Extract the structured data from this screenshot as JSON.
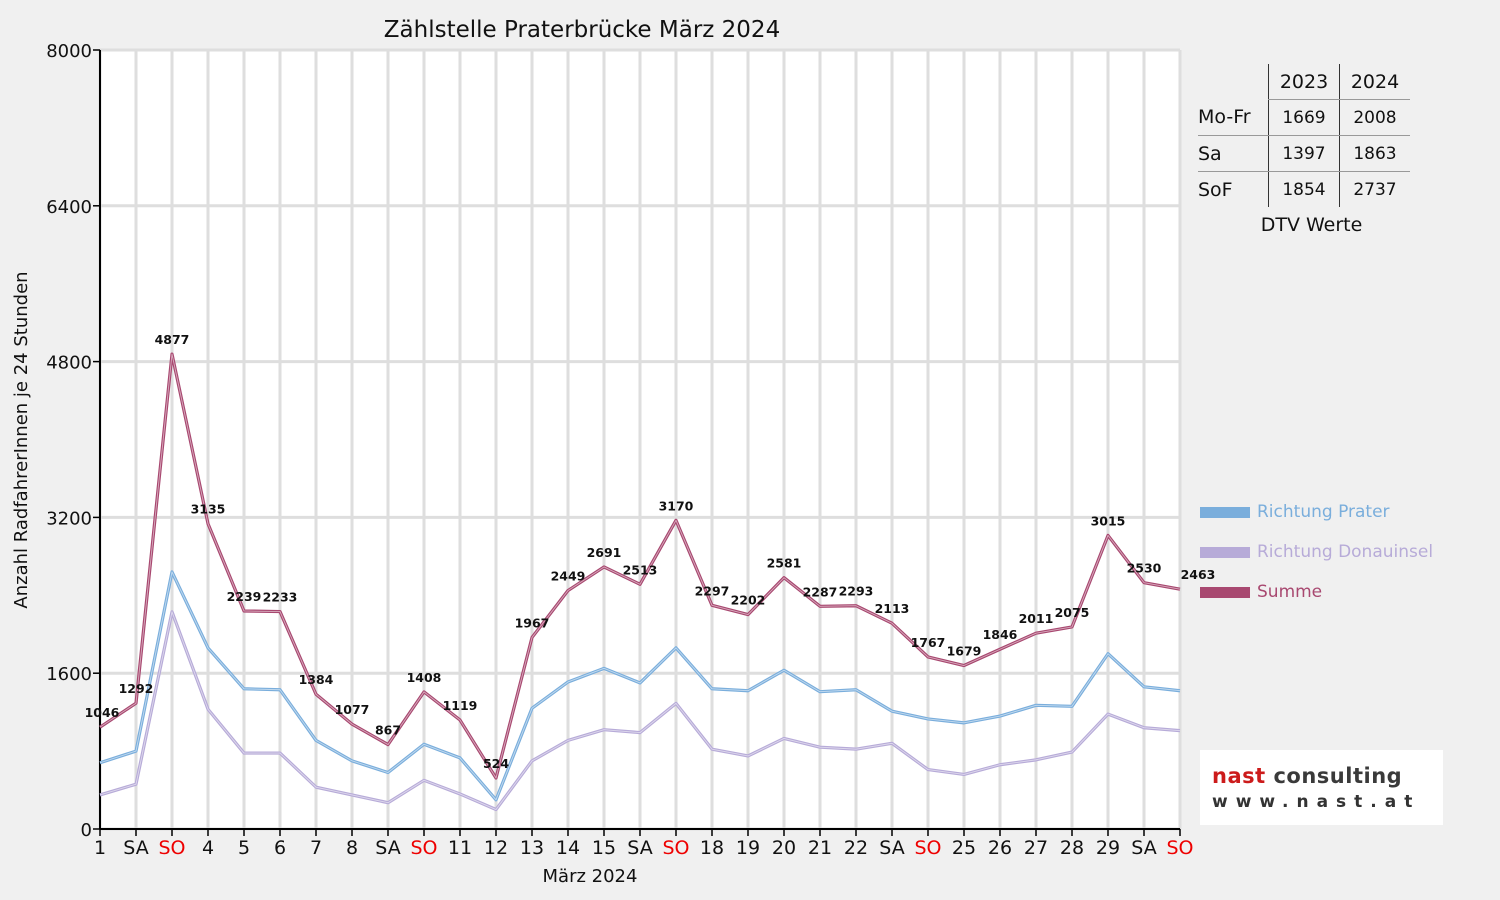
{
  "chart_data": {
    "type": "line",
    "title": "Zählstelle Praterbrücke März 2024",
    "xlabel": "März 2024",
    "ylabel": "Anzahl RadfahrerInnen je 24 Stunden",
    "ylim": [
      0,
      8000
    ],
    "yticks": [
      "0",
      "1600",
      "3200",
      "4800",
      "6400",
      "8000"
    ],
    "grid": true,
    "legend_position": "right",
    "categories": [
      "1",
      "SA",
      "SO",
      "4",
      "5",
      "6",
      "7",
      "8",
      "SA",
      "SO",
      "11",
      "12",
      "13",
      "14",
      "15",
      "SA",
      "SO",
      "18",
      "19",
      "20",
      "21",
      "22",
      "SA",
      "SO",
      "25",
      "26",
      "27",
      "28",
      "29",
      "SA",
      "SO"
    ],
    "weekend_categories": [
      false,
      false,
      true,
      false,
      false,
      false,
      false,
      false,
      false,
      true,
      false,
      false,
      false,
      false,
      false,
      false,
      true,
      false,
      false,
      false,
      false,
      false,
      false,
      true,
      false,
      false,
      false,
      false,
      false,
      false,
      true
    ],
    "series": [
      {
        "name": "Richtung Prater",
        "color": "#7aaedc",
        "values": [
          680,
          800,
          2640,
          1860,
          1440,
          1430,
          910,
          700,
          580,
          870,
          730,
          300,
          1240,
          1510,
          1650,
          1500,
          1860,
          1440,
          1420,
          1630,
          1410,
          1430,
          1210,
          1130,
          1090,
          1160,
          1270,
          1260,
          1800,
          1460,
          1420
        ]
      },
      {
        "name": "Richtung Donauinsel",
        "color": "#b7abd8",
        "values": [
          350,
          460,
          2230,
          1230,
          780,
          780,
          430,
          350,
          270,
          500,
          360,
          200,
          700,
          910,
          1020,
          990,
          1290,
          820,
          750,
          930,
          840,
          820,
          880,
          610,
          560,
          660,
          710,
          790,
          1180,
          1040,
          1010
        ]
      },
      {
        "name": "Summe",
        "color": "#a84870",
        "values": [
          1046,
          1292,
          4877,
          3135,
          2239,
          2233,
          1384,
          1077,
          867,
          1408,
          1119,
          524,
          1967,
          2449,
          2691,
          2513,
          3170,
          2297,
          2202,
          2581,
          2287,
          2293,
          2113,
          1767,
          1679,
          1846,
          2011,
          2075,
          3015,
          2530,
          2463
        ]
      }
    ],
    "data_labels": [
      "1046",
      "1292",
      "4877",
      "3135",
      "2239",
      "2233",
      "1384",
      "1077",
      "867",
      "1408",
      "1119",
      "524",
      "1967",
      "2449",
      "2691",
      "2513",
      "3170",
      "2297",
      "2202",
      "2581",
      "2287",
      "2293",
      "2113",
      "1767",
      "1679",
      "1846",
      "2011",
      "2075",
      "3015",
      "2530",
      "2463"
    ]
  },
  "dtv_table": {
    "headers": [
      "",
      "2023",
      "2024"
    ],
    "rows": [
      {
        "label": "Mo-Fr",
        "v2023": "1669",
        "v2024": "2008"
      },
      {
        "label": "Sa",
        "v2023": "1397",
        "v2024": "1863"
      },
      {
        "label": "SoF",
        "v2023": "1854",
        "v2024": "2737"
      }
    ],
    "caption": "DTV Werte"
  },
  "logo": {
    "brand_red": "nast",
    "brand_rest": "consulting",
    "url": "www.nast.at"
  },
  "colors": {
    "weekend_label": "#ee0000",
    "grid": "#dedede",
    "plot_background": "#ffffff"
  }
}
